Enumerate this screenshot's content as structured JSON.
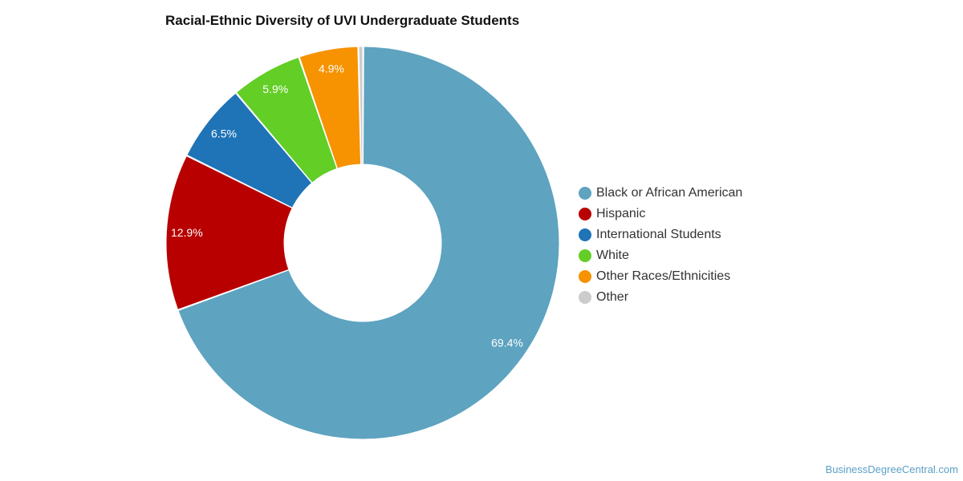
{
  "title": "Racial-Ethnic Diversity of UVI Undergraduate Students",
  "watermark": "BusinessDegreeCentral.com",
  "chart_data": {
    "type": "pie",
    "variant": "donut",
    "title": "Racial-Ethnic Diversity of UVI Undergraduate Students",
    "legend_position": "right",
    "unit": "%",
    "slices": [
      {
        "name": "Black or African American",
        "value": 69.4,
        "label": "69.4%",
        "color": "#5ea3c0"
      },
      {
        "name": "Hispanic",
        "value": 12.9,
        "label": "12.9%",
        "color": "#b80000"
      },
      {
        "name": "International Students",
        "value": 6.5,
        "label": "6.5%",
        "color": "#1f73b7"
      },
      {
        "name": "White",
        "value": 5.9,
        "label": "5.9%",
        "color": "#62ce26"
      },
      {
        "name": "Other Races/Ethnicities",
        "value": 4.9,
        "label": "4.9%",
        "color": "#f79200"
      },
      {
        "name": "Other",
        "value": 0.4,
        "label": "",
        "color": "#cccccc"
      }
    ]
  }
}
